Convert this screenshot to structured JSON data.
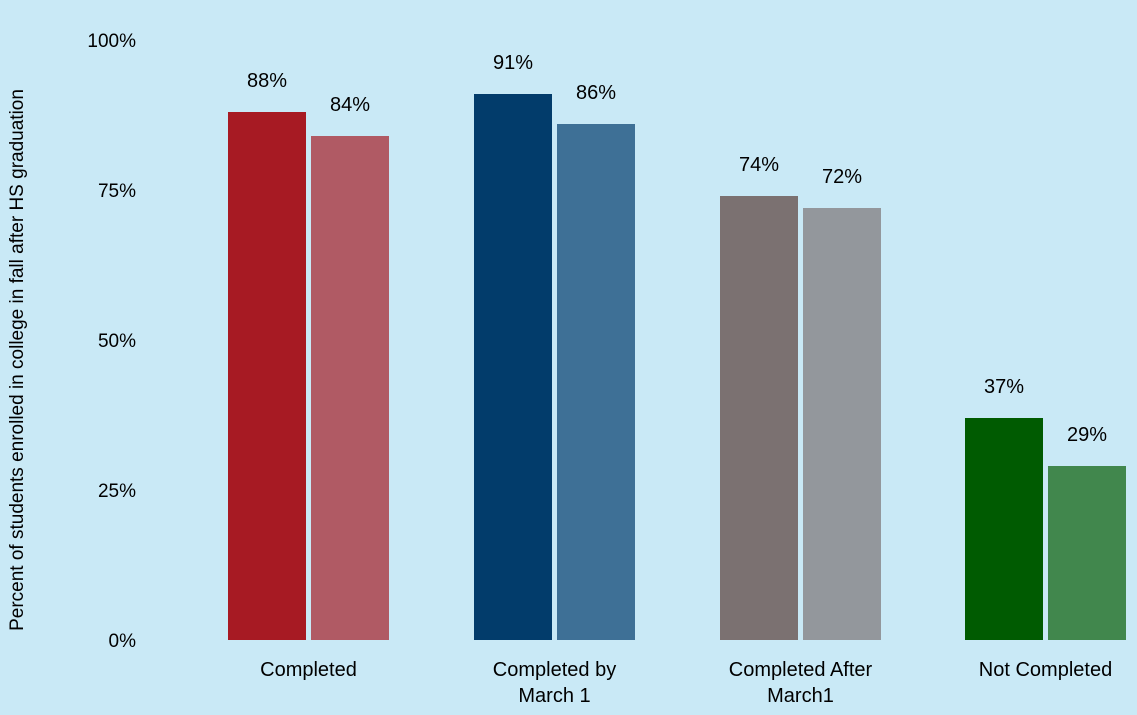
{
  "chart_data": {
    "type": "bar",
    "title": "",
    "xlabel": "",
    "ylabel": "Percent of students enrolled in college in fall after HS graduation",
    "ylim": [
      0,
      100
    ],
    "yticks": [
      "0%",
      "25%",
      "50%",
      "75%",
      "100%"
    ],
    "grid": false,
    "categories": [
      [
        "Completed"
      ],
      [
        "Completed by",
        "March 1"
      ],
      [
        "Completed After",
        "March1"
      ],
      [
        "Not Completed"
      ]
    ],
    "series": [
      {
        "values": [
          88,
          91,
          74,
          37
        ],
        "labels": [
          "88%",
          "91%",
          "74%",
          "37%"
        ]
      },
      {
        "values": [
          84,
          86,
          72,
          29
        ],
        "labels": [
          "84%",
          "86%",
          "72%",
          "29%"
        ]
      }
    ],
    "colors": [
      [
        "#a71a23",
        "#b05a64"
      ],
      [
        "#023c6b",
        "#3e7096"
      ],
      [
        "#7b7171",
        "#93979c"
      ],
      [
        "#005b01",
        "#41874d"
      ]
    ]
  }
}
